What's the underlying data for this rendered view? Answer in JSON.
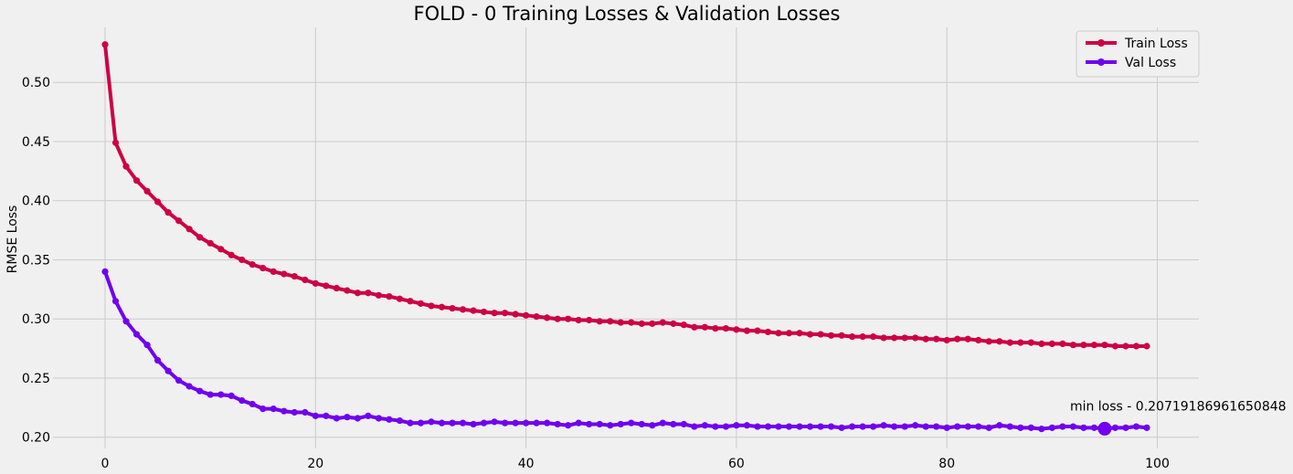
{
  "chart_data": {
    "type": "line",
    "title": "FOLD - 0 Training Losses & Validation Losses",
    "xlabel": "",
    "ylabel": "RMSE Loss",
    "xlim": [
      -4.95,
      103.95
    ],
    "ylim": [
      0.1905,
      0.5465
    ],
    "xticks": [
      0,
      20,
      40,
      60,
      80,
      100
    ],
    "yticks": [
      0.2,
      0.25,
      0.3,
      0.35,
      0.4,
      0.45,
      0.5
    ],
    "xtick_labels": [
      "0",
      "20",
      "40",
      "60",
      "80",
      "100"
    ],
    "ytick_labels": [
      "0.20",
      "0.25",
      "0.30",
      "0.35",
      "0.40",
      "0.45",
      "0.50"
    ],
    "grid": true,
    "legend_position": "top-right",
    "series": [
      {
        "name": "Train Loss",
        "color": "#cc0044",
        "x": [
          0,
          1,
          2,
          3,
          4,
          5,
          6,
          7,
          8,
          9,
          10,
          11,
          12,
          13,
          14,
          15,
          16,
          17,
          18,
          19,
          20,
          21,
          22,
          23,
          24,
          25,
          26,
          27,
          28,
          29,
          30,
          31,
          32,
          33,
          34,
          35,
          36,
          37,
          38,
          39,
          40,
          41,
          42,
          43,
          44,
          45,
          46,
          47,
          48,
          49,
          50,
          51,
          52,
          53,
          54,
          55,
          56,
          57,
          58,
          59,
          60,
          61,
          62,
          63,
          64,
          65,
          66,
          67,
          68,
          69,
          70,
          71,
          72,
          73,
          74,
          75,
          76,
          77,
          78,
          79,
          80,
          81,
          82,
          83,
          84,
          85,
          86,
          87,
          88,
          89,
          90,
          91,
          92,
          93,
          94,
          95,
          96,
          97,
          98,
          99
        ],
        "values": [
          0.532,
          0.449,
          0.429,
          0.417,
          0.408,
          0.399,
          0.39,
          0.383,
          0.376,
          0.369,
          0.364,
          0.359,
          0.354,
          0.35,
          0.346,
          0.343,
          0.34,
          0.338,
          0.336,
          0.333,
          0.33,
          0.328,
          0.326,
          0.324,
          0.322,
          0.322,
          0.32,
          0.319,
          0.317,
          0.315,
          0.313,
          0.311,
          0.31,
          0.309,
          0.308,
          0.307,
          0.306,
          0.305,
          0.305,
          0.304,
          0.303,
          0.302,
          0.301,
          0.3,
          0.3,
          0.299,
          0.299,
          0.298,
          0.298,
          0.297,
          0.297,
          0.296,
          0.296,
          0.297,
          0.296,
          0.295,
          0.293,
          0.293,
          0.292,
          0.292,
          0.291,
          0.29,
          0.29,
          0.289,
          0.288,
          0.288,
          0.288,
          0.287,
          0.287,
          0.286,
          0.286,
          0.285,
          0.285,
          0.285,
          0.284,
          0.284,
          0.284,
          0.284,
          0.283,
          0.283,
          0.282,
          0.283,
          0.283,
          0.282,
          0.281,
          0.281,
          0.28,
          0.28,
          0.28,
          0.279,
          0.279,
          0.279,
          0.278,
          0.278,
          0.278,
          0.278,
          0.277,
          0.277,
          0.277,
          0.277
        ]
      },
      {
        "name": "Val Loss",
        "color": "#7000ee",
        "x": [
          0,
          1,
          2,
          3,
          4,
          5,
          6,
          7,
          8,
          9,
          10,
          11,
          12,
          13,
          14,
          15,
          16,
          17,
          18,
          19,
          20,
          21,
          22,
          23,
          24,
          25,
          26,
          27,
          28,
          29,
          30,
          31,
          32,
          33,
          34,
          35,
          36,
          37,
          38,
          39,
          40,
          41,
          42,
          43,
          44,
          45,
          46,
          47,
          48,
          49,
          50,
          51,
          52,
          53,
          54,
          55,
          56,
          57,
          58,
          59,
          60,
          61,
          62,
          63,
          64,
          65,
          66,
          67,
          68,
          69,
          70,
          71,
          72,
          73,
          74,
          75,
          76,
          77,
          78,
          79,
          80,
          81,
          82,
          83,
          84,
          85,
          86,
          87,
          88,
          89,
          90,
          91,
          92,
          93,
          94,
          95,
          96,
          97,
          98,
          99
        ],
        "values": [
          0.34,
          0.315,
          0.298,
          0.287,
          0.278,
          0.265,
          0.256,
          0.248,
          0.243,
          0.239,
          0.236,
          0.236,
          0.235,
          0.231,
          0.228,
          0.224,
          0.224,
          0.222,
          0.221,
          0.221,
          0.218,
          0.218,
          0.216,
          0.217,
          0.216,
          0.218,
          0.216,
          0.215,
          0.214,
          0.212,
          0.212,
          0.213,
          0.212,
          0.212,
          0.212,
          0.211,
          0.212,
          0.213,
          0.212,
          0.212,
          0.212,
          0.212,
          0.212,
          0.211,
          0.21,
          0.212,
          0.211,
          0.211,
          0.21,
          0.211,
          0.212,
          0.211,
          0.21,
          0.212,
          0.211,
          0.211,
          0.209,
          0.21,
          0.209,
          0.209,
          0.21,
          0.21,
          0.209,
          0.209,
          0.209,
          0.209,
          0.209,
          0.209,
          0.209,
          0.209,
          0.208,
          0.209,
          0.209,
          0.209,
          0.21,
          0.209,
          0.209,
          0.21,
          0.209,
          0.209,
          0.208,
          0.209,
          0.209,
          0.209,
          0.208,
          0.21,
          0.209,
          0.208,
          0.208,
          0.207,
          0.208,
          0.209,
          0.209,
          0.208,
          0.208,
          0.2072,
          0.208,
          0.208,
          0.209,
          0.208
        ]
      }
    ],
    "annotation": {
      "text": "min loss - 0.20719186961650848",
      "x": 95,
      "y": 0.20719186961650848,
      "marker_color": "#7000ee"
    }
  }
}
